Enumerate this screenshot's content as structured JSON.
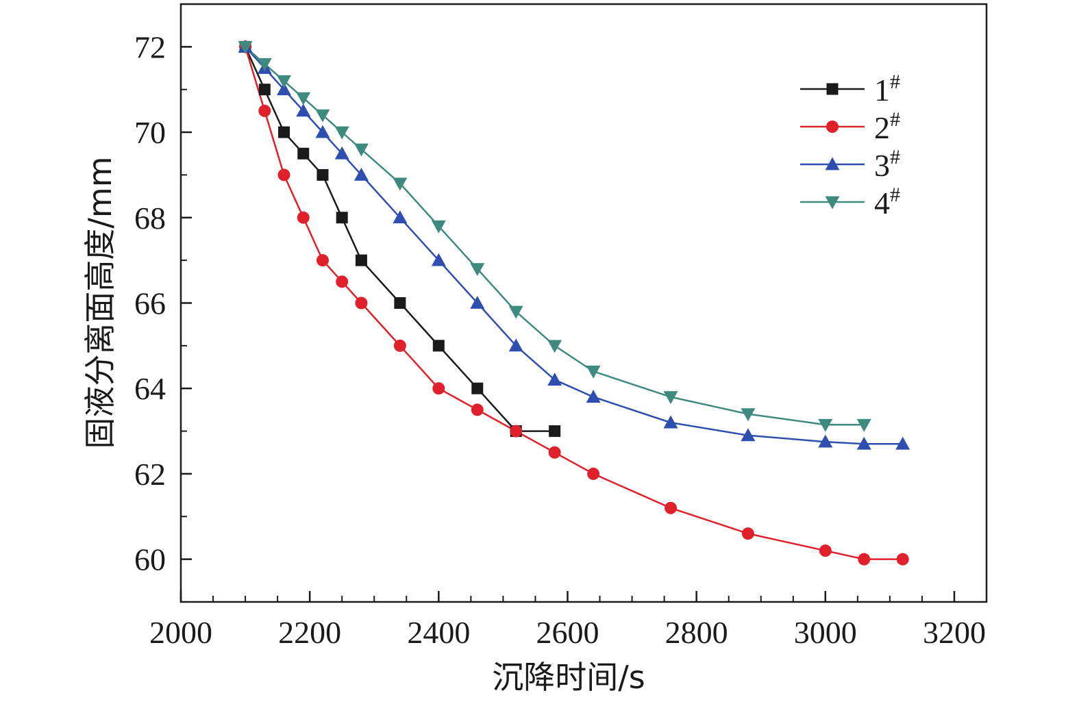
{
  "chart_data": {
    "type": "line",
    "title": "",
    "xlabel": "沉降时间/s",
    "ylabel": "固液分离面高度/mm",
    "xlim": [
      2000,
      3250
    ],
    "ylim": [
      59,
      73
    ],
    "x_ticks": [
      2000,
      2200,
      2400,
      2600,
      2800,
      3000,
      3200
    ],
    "x_tick_labels": [
      "2000",
      "2200",
      "2400",
      "2600",
      "2800",
      "3000",
      "3200"
    ],
    "y_ticks": [
      60,
      62,
      64,
      66,
      68,
      70,
      72
    ],
    "y_tick_labels": [
      "60",
      "62",
      "64",
      "66",
      "68",
      "70",
      "72"
    ],
    "grid": false,
    "legend_position": "top-right",
    "series": [
      {
        "name": "1",
        "name_sup": "#",
        "color": "#1a1a1a",
        "marker": "square",
        "points": [
          [
            2100,
            72
          ],
          [
            2130,
            71
          ],
          [
            2160,
            70
          ],
          [
            2190,
            69.5
          ],
          [
            2220,
            69
          ],
          [
            2250,
            68
          ],
          [
            2280,
            67
          ],
          [
            2340,
            66
          ],
          [
            2400,
            65
          ],
          [
            2460,
            64
          ],
          [
            2520,
            63
          ],
          [
            2580,
            63
          ]
        ]
      },
      {
        "name": "2",
        "name_sup": "#",
        "color": "#e0202a",
        "marker": "circle",
        "points": [
          [
            2100,
            72
          ],
          [
            2130,
            70.5
          ],
          [
            2160,
            69
          ],
          [
            2190,
            68
          ],
          [
            2220,
            67
          ],
          [
            2250,
            66.5
          ],
          [
            2280,
            66
          ],
          [
            2340,
            65
          ],
          [
            2400,
            64
          ],
          [
            2460,
            63.5
          ],
          [
            2520,
            63
          ],
          [
            2580,
            62.5
          ],
          [
            2640,
            62
          ],
          [
            2760,
            61.2
          ],
          [
            2880,
            60.6
          ],
          [
            3000,
            60.2
          ],
          [
            3060,
            60
          ],
          [
            3120,
            60
          ]
        ]
      },
      {
        "name": "3",
        "name_sup": "#",
        "color": "#2f4fb0",
        "marker": "triangle-up",
        "points": [
          [
            2100,
            72
          ],
          [
            2130,
            71.5
          ],
          [
            2160,
            71
          ],
          [
            2190,
            70.5
          ],
          [
            2220,
            70
          ],
          [
            2250,
            69.5
          ],
          [
            2280,
            69
          ],
          [
            2340,
            68
          ],
          [
            2400,
            67
          ],
          [
            2460,
            66
          ],
          [
            2520,
            65
          ],
          [
            2580,
            64.2
          ],
          [
            2640,
            63.8
          ],
          [
            2760,
            63.2
          ],
          [
            2880,
            62.9
          ],
          [
            3000,
            62.75
          ],
          [
            3060,
            62.7
          ],
          [
            3120,
            62.7
          ]
        ]
      },
      {
        "name": "4",
        "name_sup": "#",
        "color": "#3e8a7e",
        "marker": "triangle-down",
        "points": [
          [
            2100,
            72
          ],
          [
            2130,
            71.6
          ],
          [
            2160,
            71.2
          ],
          [
            2190,
            70.8
          ],
          [
            2220,
            70.4
          ],
          [
            2250,
            70
          ],
          [
            2280,
            69.6
          ],
          [
            2340,
            68.8
          ],
          [
            2400,
            67.8
          ],
          [
            2460,
            66.8
          ],
          [
            2520,
            65.8
          ],
          [
            2580,
            65
          ],
          [
            2640,
            64.4
          ],
          [
            2760,
            63.8
          ],
          [
            2880,
            63.4
          ],
          [
            3000,
            63.15
          ],
          [
            3060,
            63.15
          ]
        ]
      }
    ]
  }
}
